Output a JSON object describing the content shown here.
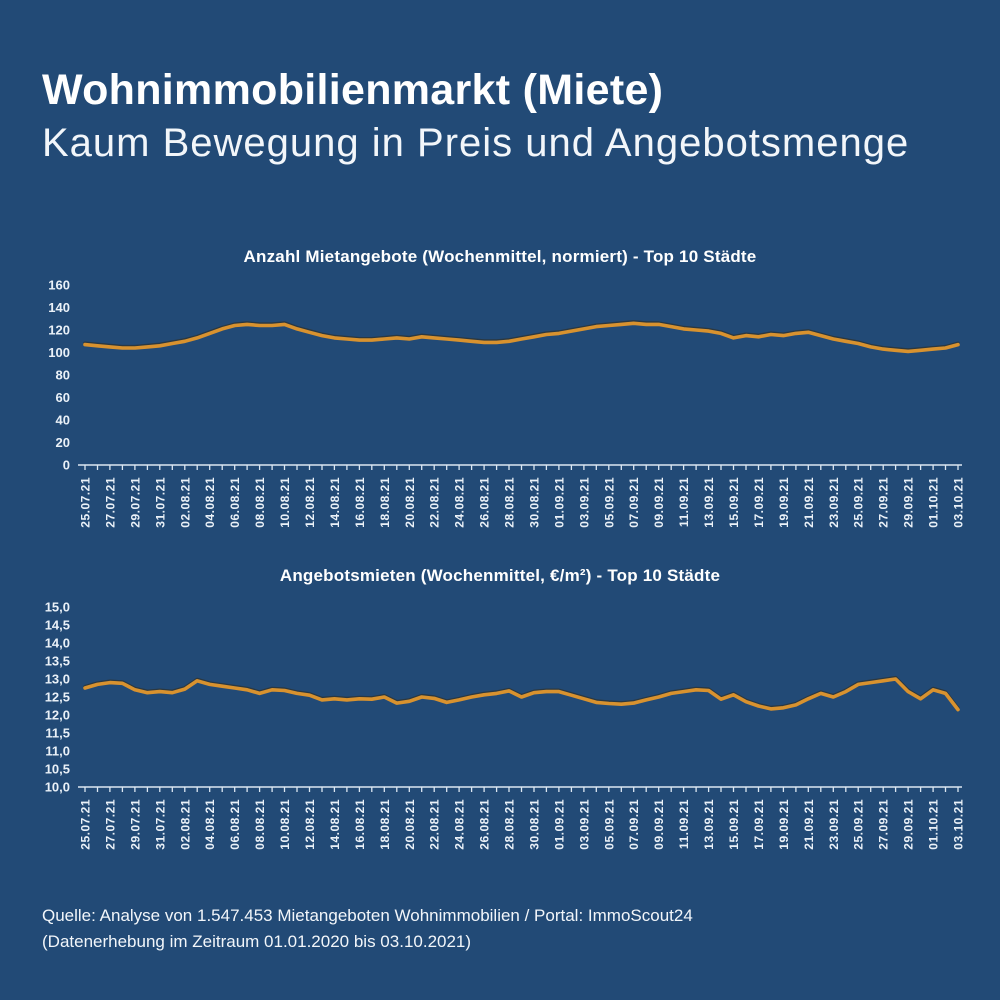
{
  "header": {
    "title": "Wohnimmobilienmarkt (Miete)",
    "subtitle": "Kaum Bewegung in Preis und Angebotsmenge"
  },
  "footer": {
    "line1": "Quelle: Analyse von 1.547.453 Mietangeboten Wohnimmobilien / Portal: ImmoScout24",
    "line2": "(Datenerhebung im Zeitraum 01.01.2020 bis 03.10.2021)"
  },
  "colors": {
    "background": "#224A76",
    "line": "#D8922F",
    "title_text": "#FFFFFF",
    "axis": "#DCE7F2"
  },
  "chart_data": [
    {
      "type": "line",
      "title": "Anzahl Mietangebote (Wochenmittel, normiert) - Top 10 Städte",
      "xlabel": "",
      "ylabel": "",
      "ylim": [
        0,
        160
      ],
      "grid": false,
      "legend": "none",
      "y_tick_values": [
        0,
        20,
        40,
        60,
        80,
        100,
        120,
        140,
        160
      ],
      "y_tick_labels": [
        "0",
        "20",
        "40",
        "60",
        "80",
        "100",
        "120",
        "140",
        "160"
      ],
      "x_label_every": 2,
      "x_tick_labels": [
        "25.07.21",
        "27.07.21",
        "29.07.21",
        "31.07.21",
        "02.08.21",
        "04.08.21",
        "06.08.21",
        "08.08.21",
        "10.08.21",
        "12.08.21",
        "14.08.21",
        "16.08.21",
        "18.08.21",
        "20.08.21",
        "22.08.21",
        "24.08.21",
        "26.08.21",
        "28.08.21",
        "30.08.21",
        "01.09.21",
        "03.09.21",
        "05.09.21",
        "07.09.21",
        "09.09.21",
        "11.09.21",
        "13.09.21",
        "15.09.21",
        "17.09.21",
        "19.09.21",
        "21.09.21",
        "23.09.21",
        "25.09.21",
        "27.09.21",
        "29.09.21",
        "01.10.21",
        "03.10.21"
      ],
      "values": [
        107,
        106,
        105,
        104,
        104,
        105,
        106,
        108,
        110,
        113,
        117,
        121,
        124,
        125,
        124,
        124,
        125,
        121,
        118,
        115,
        113,
        112,
        111,
        111,
        112,
        113,
        112,
        114,
        113,
        112,
        111,
        110,
        109,
        109,
        110,
        112,
        114,
        116,
        117,
        119,
        121,
        123,
        124,
        125,
        126,
        125,
        125,
        123,
        121,
        120,
        119,
        117,
        113,
        115,
        114,
        116,
        115,
        117,
        118,
        115,
        112,
        110,
        108,
        105,
        103,
        102,
        101,
        102,
        103,
        104,
        107
      ]
    },
    {
      "type": "line",
      "title": "Angebotsmieten (Wochenmittel, €/m²) - Top 10 Städte",
      "xlabel": "",
      "ylabel": "",
      "ylim": [
        10,
        15
      ],
      "grid": false,
      "legend": "none",
      "y_tick_values": [
        10,
        10.5,
        11,
        11.5,
        12,
        12.5,
        13,
        13.5,
        14,
        14.5,
        15
      ],
      "y_tick_labels": [
        "10,0",
        "10,5",
        "11,0",
        "11,5",
        "12,0",
        "12,5",
        "13,0",
        "13,5",
        "14,0",
        "14,5",
        "15,0"
      ],
      "x_label_every": 2,
      "x_tick_labels": [
        "25.07.21",
        "27.07.21",
        "29.07.21",
        "31.07.21",
        "02.08.21",
        "04.08.21",
        "06.08.21",
        "08.08.21",
        "10.08.21",
        "12.08.21",
        "14.08.21",
        "16.08.21",
        "18.08.21",
        "20.08.21",
        "22.08.21",
        "24.08.21",
        "26.08.21",
        "28.08.21",
        "30.08.21",
        "01.09.21",
        "03.09.21",
        "05.09.21",
        "07.09.21",
        "09.09.21",
        "11.09.21",
        "13.09.21",
        "15.09.21",
        "17.09.21",
        "19.09.21",
        "21.09.21",
        "23.09.21",
        "25.09.21",
        "27.09.21",
        "29.09.21",
        "01.10.21",
        "03.10.21"
      ],
      "values": [
        12.75,
        12.85,
        12.9,
        12.88,
        12.7,
        12.62,
        12.65,
        12.62,
        12.72,
        12.95,
        12.85,
        12.8,
        12.75,
        12.7,
        12.6,
        12.7,
        12.68,
        12.6,
        12.55,
        12.42,
        12.45,
        12.42,
        12.45,
        12.44,
        12.5,
        12.33,
        12.38,
        12.5,
        12.46,
        12.35,
        12.42,
        12.5,
        12.56,
        12.6,
        12.67,
        12.5,
        12.62,
        12.65,
        12.65,
        12.55,
        12.45,
        12.35,
        12.32,
        12.3,
        12.33,
        12.42,
        12.5,
        12.6,
        12.65,
        12.7,
        12.68,
        12.44,
        12.56,
        12.37,
        12.25,
        12.17,
        12.2,
        12.28,
        12.45,
        12.6,
        12.5,
        12.65,
        12.85,
        12.9,
        12.95,
        13.0,
        12.65,
        12.45,
        12.7,
        12.6,
        12.15
      ]
    }
  ]
}
